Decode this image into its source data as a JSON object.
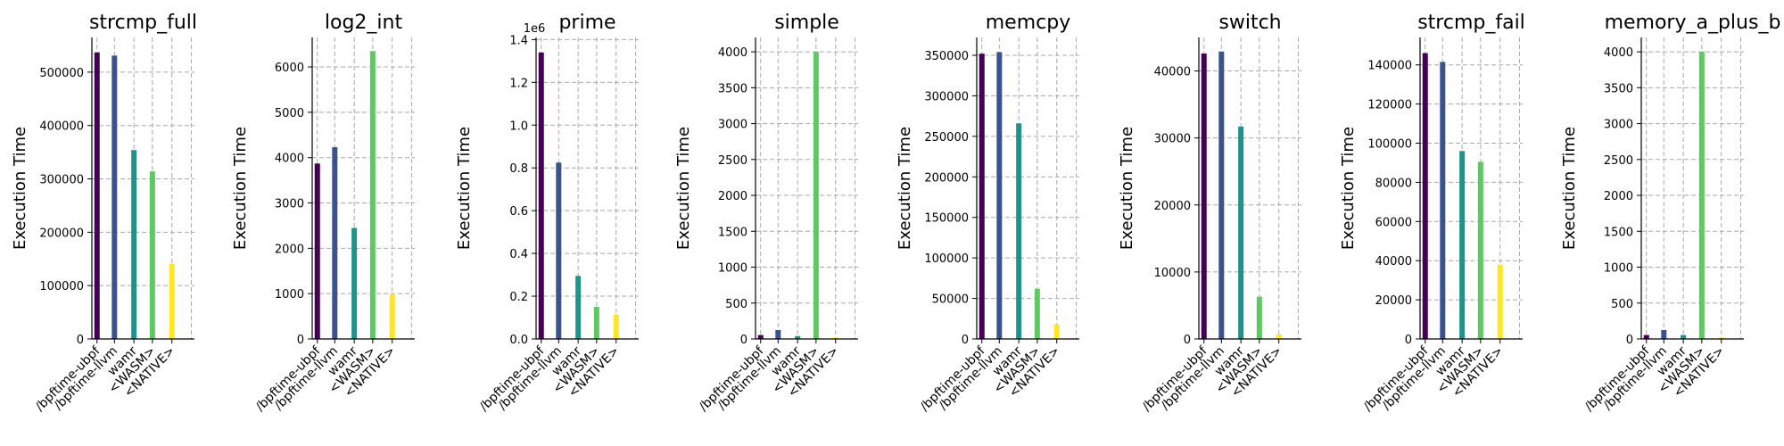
{
  "chart_data": [
    {
      "type": "bar",
      "title": "strcmp_full",
      "ylabel": "Execution Time",
      "categories": [
        "/bpftime-ubpf",
        "/bpftime-llvm",
        "wamr",
        "<WASM>",
        "<NATIVE>"
      ],
      "values": [
        537000,
        531000,
        354000,
        314000,
        141000
      ],
      "ylim": [
        0,
        565000
      ],
      "yticks": [
        0,
        100000,
        200000,
        300000,
        400000,
        500000
      ],
      "ytick_labels": [
        "0",
        "100000",
        "200000",
        "300000",
        "400000",
        "500000"
      ],
      "offset_text": ""
    },
    {
      "type": "bar",
      "title": "log2_int",
      "ylabel": "Execution Time",
      "categories": [
        "/bpftime-ubpf",
        "/bpftime-llvm",
        "wamr",
        "<WASM>",
        "<NATIVE>"
      ],
      "values": [
        3870,
        4230,
        2450,
        6350,
        980
      ],
      "ylim": [
        0,
        6650
      ],
      "yticks": [
        0,
        1000,
        2000,
        3000,
        4000,
        5000,
        6000
      ],
      "ytick_labels": [
        "0",
        "1000",
        "2000",
        "3000",
        "4000",
        "5000",
        "6000"
      ],
      "offset_text": ""
    },
    {
      "type": "bar",
      "title": "prime",
      "ylabel": "Execution Time",
      "categories": [
        "/bpftime-ubpf",
        "/bpftime-llvm",
        "wamr",
        "<WASM>",
        "<NATIVE>"
      ],
      "values": [
        1340000,
        825000,
        295000,
        150000,
        115000
      ],
      "ylim": [
        0,
        1410000
      ],
      "yticks": [
        0,
        200000,
        400000,
        600000,
        800000,
        1000000,
        1200000,
        1400000
      ],
      "ytick_labels": [
        "0.0",
        "0.2",
        "0.4",
        "0.6",
        "0.8",
        "1.0",
        "1.2",
        "1.4"
      ],
      "offset_text": "1e6"
    },
    {
      "type": "bar",
      "title": "simple",
      "ylabel": "Execution Time",
      "categories": [
        "/bpftime-ubpf",
        "/bpftime-llvm",
        "wamr",
        "<WASM>",
        "<NATIVE>"
      ],
      "values": [
        55,
        125,
        40,
        4000,
        20
      ],
      "ylim": [
        0,
        4200
      ],
      "yticks": [
        0,
        500,
        1000,
        1500,
        2000,
        2500,
        3000,
        3500,
        4000
      ],
      "ytick_labels": [
        "0",
        "500",
        "1000",
        "1500",
        "2000",
        "2500",
        "3000",
        "3500",
        "4000"
      ],
      "offset_text": ""
    },
    {
      "type": "bar",
      "title": "memcpy",
      "ylabel": "Execution Time",
      "categories": [
        "/bpftime-ubpf",
        "/bpftime-llvm",
        "wamr",
        "<WASM>",
        "<NATIVE>"
      ],
      "values": [
        352000,
        354000,
        266000,
        62000,
        18000
      ],
      "ylim": [
        0,
        372000
      ],
      "yticks": [
        0,
        50000,
        100000,
        150000,
        200000,
        250000,
        300000,
        350000
      ],
      "ytick_labels": [
        "0",
        "50000",
        "100000",
        "150000",
        "200000",
        "250000",
        "300000",
        "350000"
      ],
      "offset_text": ""
    },
    {
      "type": "bar",
      "title": "switch",
      "ylabel": "Execution Time",
      "categories": [
        "/bpftime-ubpf",
        "/bpftime-llvm",
        "wamr",
        "<WASM>",
        "<NATIVE>"
      ],
      "values": [
        42600,
        42900,
        31700,
        6300,
        700
      ],
      "ylim": [
        0,
        45000
      ],
      "yticks": [
        0,
        10000,
        20000,
        30000,
        40000
      ],
      "ytick_labels": [
        "0",
        "10000",
        "20000",
        "30000",
        "40000"
      ],
      "offset_text": ""
    },
    {
      "type": "bar",
      "title": "strcmp_fail",
      "ylabel": "Execution Time",
      "categories": [
        "/bpftime-ubpf",
        "/bpftime-llvm",
        "wamr",
        "<WASM>",
        "<NATIVE>"
      ],
      "values": [
        146000,
        141500,
        96000,
        90500,
        38000
      ],
      "ylim": [
        0,
        154000
      ],
      "yticks": [
        0,
        20000,
        40000,
        60000,
        80000,
        100000,
        120000,
        140000
      ],
      "ytick_labels": [
        "0",
        "20000",
        "40000",
        "60000",
        "80000",
        "100000",
        "120000",
        "140000"
      ],
      "offset_text": ""
    },
    {
      "type": "bar",
      "title": "memory_a_plus_b",
      "ylabel": "Execution Time",
      "categories": [
        "/bpftime-ubpf",
        "/bpftime-llvm",
        "wamr",
        "<WASM>",
        "<NATIVE>"
      ],
      "values": [
        55,
        125,
        55,
        4000,
        20
      ],
      "ylim": [
        0,
        4200
      ],
      "yticks": [
        0,
        500,
        1000,
        1500,
        2000,
        2500,
        3000,
        3500,
        4000
      ],
      "ytick_labels": [
        "0",
        "500",
        "1000",
        "1500",
        "2000",
        "2500",
        "3000",
        "3500",
        "4000"
      ],
      "offset_text": ""
    }
  ],
  "bar_colors": [
    "#440154",
    "#3b528b",
    "#21918c",
    "#5ec962",
    "#fde725"
  ],
  "grid": true
}
